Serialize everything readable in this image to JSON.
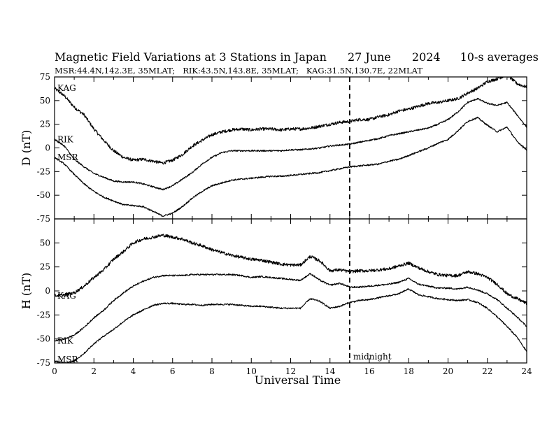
{
  "title": {
    "main": "Magnetic Field Variations at 3 Stations in Japan",
    "date": "27 June",
    "year": "2024",
    "note": "10-s averages"
  },
  "subtitle": "MSR:44.4N,142.3E, 35MLAT;   RIK:43.5N,143.8E, 35MLAT;   KAG:31.5N,130.7E, 22MLAT",
  "chart_data": [
    {
      "type": "line",
      "panel": "top",
      "ylabel": "D (nT)",
      "ylim": [
        -75,
        75
      ],
      "yticks": [
        -75,
        -50,
        -25,
        0,
        25,
        50,
        75
      ],
      "xlim": [
        0,
        24
      ],
      "series": [
        {
          "name": "KAG",
          "x": [
            0,
            0.5,
            1,
            1.5,
            2,
            2.5,
            3,
            3.5,
            4,
            4.5,
            5,
            5.5,
            6,
            6.5,
            7,
            7.5,
            8,
            8.5,
            9,
            9.5,
            10,
            10.5,
            11,
            11.5,
            12,
            12.5,
            13,
            13.5,
            14,
            14.5,
            15,
            15.5,
            16,
            16.5,
            17,
            17.5,
            18,
            18.5,
            19,
            19.5,
            20,
            20.5,
            21,
            21.5,
            22,
            22.5,
            23,
            23.5,
            24
          ],
          "values": [
            63,
            55,
            43,
            35,
            20,
            8,
            -3,
            -10,
            -13,
            -12,
            -14,
            -16,
            -13,
            -7,
            2,
            8,
            14,
            17,
            19,
            20,
            19,
            20,
            20,
            19,
            20,
            20,
            21,
            23,
            25,
            27,
            28,
            30,
            30,
            33,
            35,
            39,
            41,
            44,
            47,
            48,
            50,
            52,
            58,
            63,
            70,
            73,
            77,
            68,
            64
          ]
        },
        {
          "name": "RIK",
          "x": [
            0,
            0.5,
            1,
            1.5,
            2,
            2.5,
            3,
            3.5,
            4,
            4.5,
            5,
            5.5,
            6,
            6.5,
            7,
            7.5,
            8,
            8.5,
            9,
            9.5,
            10,
            10.5,
            11,
            11.5,
            12,
            12.5,
            13,
            13.5,
            14,
            14.5,
            15,
            15.5,
            16,
            16.5,
            17,
            17.5,
            18,
            18.5,
            19,
            19.5,
            20,
            20.5,
            21,
            21.5,
            22,
            22.5,
            23,
            23.5,
            24
          ],
          "values": [
            9,
            2,
            -12,
            -20,
            -27,
            -31,
            -35,
            -36,
            -36,
            -38,
            -41,
            -44,
            -40,
            -33,
            -26,
            -17,
            -10,
            -5,
            -3,
            -3,
            -3,
            -3,
            -3,
            -3,
            -2,
            -2,
            -1,
            0,
            2,
            3,
            4,
            6,
            8,
            10,
            13,
            15,
            17,
            19,
            21,
            25,
            30,
            38,
            48,
            52,
            47,
            45,
            48,
            35,
            22
          ]
        },
        {
          "name": "MSR",
          "x": [
            0,
            0.5,
            1,
            1.5,
            2,
            2.5,
            3,
            3.5,
            4,
            4.5,
            5,
            5.5,
            6,
            6.5,
            7,
            7.5,
            8,
            8.5,
            9,
            9.5,
            10,
            10.5,
            11,
            11.5,
            12,
            12.5,
            13,
            13.5,
            14,
            14.5,
            15,
            15.5,
            16,
            16.5,
            17,
            17.5,
            18,
            18.5,
            19,
            19.5,
            20,
            20.5,
            21,
            21.5,
            22,
            22.5,
            23,
            23.5,
            24
          ],
          "values": [
            -10,
            -17,
            -28,
            -38,
            -46,
            -52,
            -56,
            -60,
            -61,
            -62,
            -67,
            -72,
            -69,
            -62,
            -53,
            -46,
            -40,
            -37,
            -34,
            -33,
            -32,
            -31,
            -30,
            -30,
            -29,
            -28,
            -27,
            -26,
            -24,
            -22,
            -20,
            -19,
            -18,
            -17,
            -14,
            -12,
            -8,
            -4,
            0,
            5,
            9,
            18,
            28,
            32,
            24,
            17,
            22,
            7,
            -2
          ]
        }
      ]
    },
    {
      "type": "line",
      "panel": "bottom",
      "ylabel": "H (nT)",
      "ylim": [
        -75,
        75
      ],
      "yticks": [
        -75,
        -50,
        -25,
        0,
        25,
        50
      ],
      "xlim": [
        0,
        24
      ],
      "xlabel": "Universal Time",
      "xticks": [
        0,
        2,
        4,
        6,
        8,
        10,
        12,
        14,
        16,
        18,
        20,
        22,
        24
      ],
      "series": [
        {
          "name": "KAG",
          "x": [
            0,
            0.5,
            1,
            1.5,
            2,
            2.5,
            3,
            3.5,
            4,
            4.5,
            5,
            5.5,
            6,
            6.5,
            7,
            7.5,
            8,
            8.5,
            9,
            9.5,
            10,
            10.5,
            11,
            11.5,
            12,
            12.5,
            13,
            13.5,
            14,
            14.5,
            15,
            15.5,
            16,
            16.5,
            17,
            17.5,
            18,
            18.5,
            19,
            19.5,
            20,
            20.5,
            21,
            21.5,
            22,
            22.5,
            23,
            23.5,
            24
          ],
          "values": [
            -5,
            -4,
            -2,
            5,
            14,
            22,
            33,
            41,
            50,
            54,
            56,
            58,
            56,
            54,
            50,
            47,
            43,
            40,
            37,
            35,
            33,
            32,
            30,
            28,
            27,
            27,
            36,
            31,
            21,
            22,
            20,
            21,
            21,
            22,
            23,
            26,
            29,
            24,
            20,
            17,
            16,
            16,
            20,
            18,
            14,
            7,
            -3,
            -8,
            -13
          ]
        },
        {
          "name": "RIK",
          "x": [
            0,
            0.5,
            1,
            1.5,
            2,
            2.5,
            3,
            3.5,
            4,
            4.5,
            5,
            5.5,
            6,
            6.5,
            7,
            7.5,
            8,
            8.5,
            9,
            9.5,
            10,
            10.5,
            11,
            11.5,
            12,
            12.5,
            13,
            13.5,
            14,
            14.5,
            15,
            15.5,
            16,
            16.5,
            17,
            17.5,
            18,
            18.5,
            19,
            19.5,
            20,
            20.5,
            21,
            21.5,
            22,
            22.5,
            23,
            23.5,
            24
          ],
          "values": [
            -52,
            -50,
            -46,
            -38,
            -28,
            -20,
            -10,
            -2,
            5,
            10,
            14,
            16,
            16,
            16,
            17,
            17,
            17,
            17,
            17,
            16,
            14,
            15,
            14,
            13,
            12,
            11,
            18,
            11,
            6,
            8,
            4,
            4,
            5,
            6,
            7,
            9,
            13,
            7,
            5,
            3,
            3,
            2,
            4,
            1,
            -3,
            -9,
            -18,
            -27,
            -37
          ]
        },
        {
          "name": "MSR",
          "x": [
            0,
            0.5,
            1,
            1.5,
            2,
            2.5,
            3,
            3.5,
            4,
            4.5,
            5,
            5.5,
            6,
            6.5,
            7,
            7.5,
            8,
            8.5,
            9,
            9.5,
            10,
            10.5,
            11,
            11.5,
            12,
            12.5,
            13,
            13.5,
            14,
            14.5,
            15,
            15.5,
            16,
            16.5,
            17,
            17.5,
            18,
            18.5,
            19,
            19.5,
            20,
            20.5,
            21,
            21.5,
            22,
            22.5,
            23,
            23.5,
            24
          ],
          "values": [
            -73,
            -75,
            -73,
            -65,
            -55,
            -47,
            -40,
            -32,
            -25,
            -20,
            -15,
            -13,
            -13,
            -14,
            -14,
            -15,
            -14,
            -14,
            -14,
            -15,
            -16,
            -16,
            -17,
            -18,
            -18,
            -18,
            -8,
            -11,
            -18,
            -16,
            -12,
            -10,
            -9,
            -7,
            -5,
            -3,
            2,
            -4,
            -6,
            -8,
            -9,
            -10,
            -9,
            -12,
            -18,
            -27,
            -37,
            -48,
            -63
          ]
        }
      ]
    }
  ],
  "annotations": {
    "vline_x": 15,
    "vline_label": "midnight"
  }
}
